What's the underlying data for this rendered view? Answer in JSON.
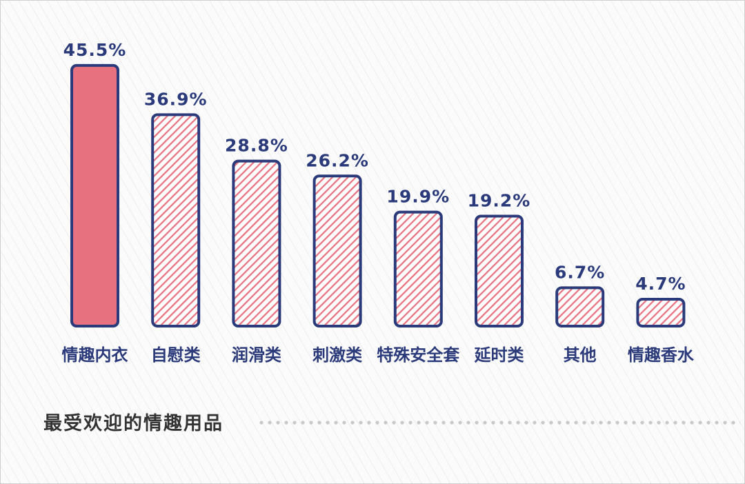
{
  "chart_data": {
    "type": "bar",
    "categories": [
      "情趣内衣",
      "自慰类",
      "润滑类",
      "刺激类",
      "特殊安全套",
      "延时类",
      "其他",
      "情趣香水"
    ],
    "values": [
      45.5,
      36.9,
      28.8,
      26.2,
      19.9,
      19.2,
      6.7,
      4.7
    ],
    "value_labels": [
      "45.5%",
      "36.9%",
      "28.8%",
      "26.2%",
      "19.9%",
      "19.2%",
      "6.7%",
      "4.7%"
    ],
    "subtitle": "最受欢迎的情趣用品",
    "highlight_index": 0,
    "colors": {
      "highlight_fill": "#e8717f",
      "hatch": "#e8717f",
      "outline": "#2b3a7a",
      "label": "#2b3a7a",
      "subtitle": "#333333"
    }
  }
}
